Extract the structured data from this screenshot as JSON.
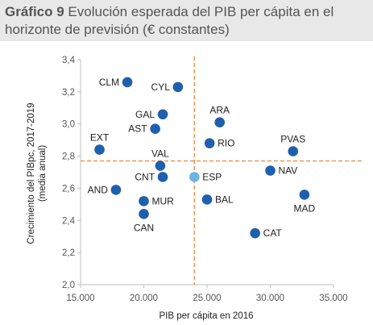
{
  "header": {
    "title_lead": "Gráfico 9",
    "title_rest": " Evolución esperada del PIB per cápita en el horizonte de previsión (€ constantes)"
  },
  "colors": {
    "point": "#1f5fad",
    "highlight": "#6cb4e6",
    "refline": "#e8914a",
    "axis": "#bfbfbf",
    "header_bg": "#e8e8e8"
  },
  "chart_data": {
    "type": "scatter",
    "xlabel": "PIB per cápita en 2016",
    "ylabel_line1": "Crecimiento del PIBpc, 2017-2019",
    "ylabel_line2": "(media anual)",
    "xlim": [
      15000,
      35000
    ],
    "ylim": [
      2.0,
      3.4
    ],
    "x_ticks": [
      15000,
      20000,
      25000,
      30000,
      35000
    ],
    "x_tick_labels": [
      "15.000",
      "20.000",
      "25.000",
      "30.000",
      "35.000"
    ],
    "y_ticks": [
      2.0,
      2.2,
      2.4,
      2.6,
      2.8,
      3.0,
      3.2,
      3.4
    ],
    "y_tick_labels": [
      "2,0",
      "2,2",
      "2,4",
      "2,6",
      "2,8",
      "3,0",
      "3,2",
      "3,4"
    ],
    "grid": false,
    "reference_lines": {
      "x": 24000,
      "y": 2.77
    },
    "points": [
      {
        "label": "CLM",
        "x": 18700,
        "y": 3.26,
        "label_pos": "left"
      },
      {
        "label": "CYL",
        "x": 22700,
        "y": 3.23,
        "label_pos": "left"
      },
      {
        "label": "GAL",
        "x": 21500,
        "y": 3.06,
        "label_pos": "left"
      },
      {
        "label": "ARA",
        "x": 26000,
        "y": 3.01,
        "label_pos": "above"
      },
      {
        "label": "AST",
        "x": 20900,
        "y": 2.97,
        "label_pos": "left"
      },
      {
        "label": "RIO",
        "x": 25200,
        "y": 2.88,
        "label_pos": "right"
      },
      {
        "label": "EXT",
        "x": 16500,
        "y": 2.84,
        "label_pos": "above"
      },
      {
        "label": "PVAS",
        "x": 31800,
        "y": 2.83,
        "label_pos": "above"
      },
      {
        "label": "VAL",
        "x": 21300,
        "y": 2.74,
        "label_pos": "above"
      },
      {
        "label": "NAV",
        "x": 30000,
        "y": 2.71,
        "label_pos": "right"
      },
      {
        "label": "ESP",
        "x": 24000,
        "y": 2.67,
        "label_pos": "right",
        "highlight": true
      },
      {
        "label": "CNT",
        "x": 21500,
        "y": 2.67,
        "label_pos": "left"
      },
      {
        "label": "AND",
        "x": 17800,
        "y": 2.59,
        "label_pos": "left"
      },
      {
        "label": "MAD",
        "x": 32700,
        "y": 2.56,
        "label_pos": "below"
      },
      {
        "label": "MUR",
        "x": 20000,
        "y": 2.52,
        "label_pos": "right"
      },
      {
        "label": "BAL",
        "x": 25000,
        "y": 2.53,
        "label_pos": "right"
      },
      {
        "label": "CAN",
        "x": 20000,
        "y": 2.44,
        "label_pos": "below"
      },
      {
        "label": "CAT",
        "x": 28800,
        "y": 2.32,
        "label_pos": "right"
      }
    ]
  }
}
